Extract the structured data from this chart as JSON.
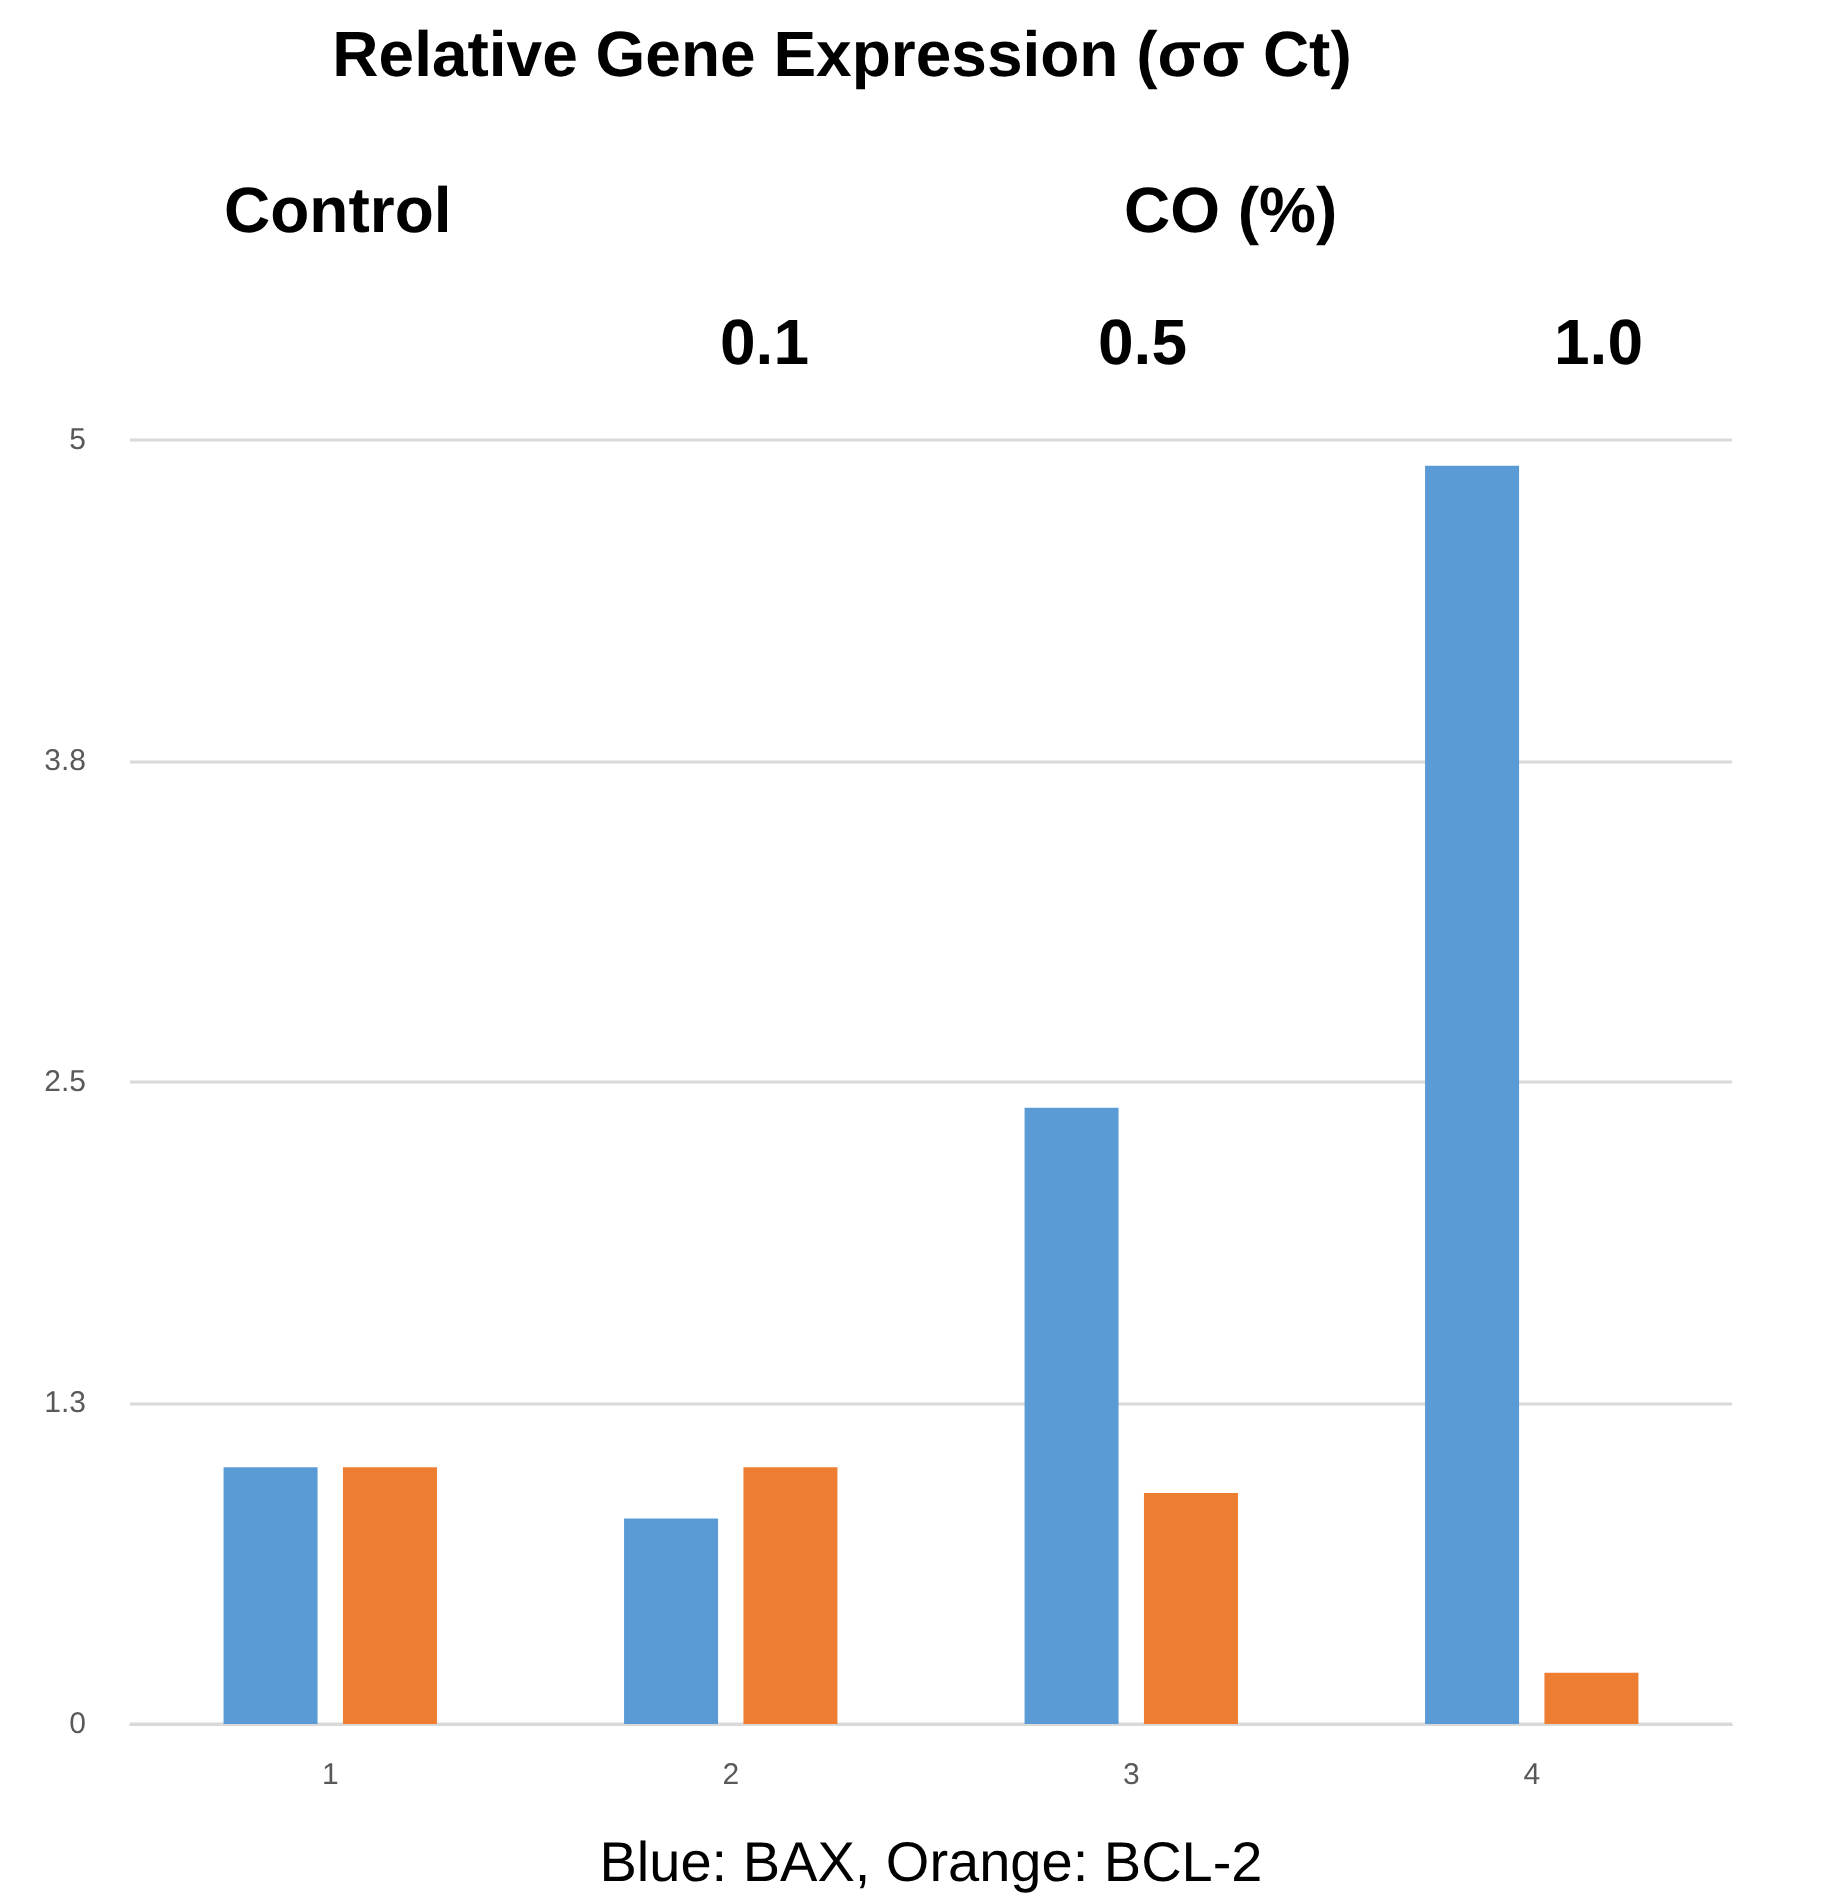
{
  "chart_data": {
    "type": "bar",
    "title": "Relative Gene Expression (σσ Ct)",
    "xlabel": "Blue: BAX, Orange: BCL-2",
    "annotations": [
      "Control",
      "CO (%)",
      "0.1",
      "0.5",
      "1.0"
    ],
    "categories": [
      "1",
      "2",
      "3",
      "4"
    ],
    "series": [
      {
        "color": "#5b9bd5",
        "values": [
          1.0,
          0.8,
          2.4,
          4.9
        ]
      },
      {
        "color": "#ed7d31",
        "values": [
          1.0,
          1.0,
          0.9,
          0.2
        ]
      }
    ],
    "ylim": [
      0,
      5
    ],
    "yticks": [
      0,
      {
        "value": 1.25,
        "label": "1.3"
      },
      2.5,
      {
        "value": 3.75,
        "label": "3.8"
      },
      5
    ],
    "grid": "y"
  }
}
